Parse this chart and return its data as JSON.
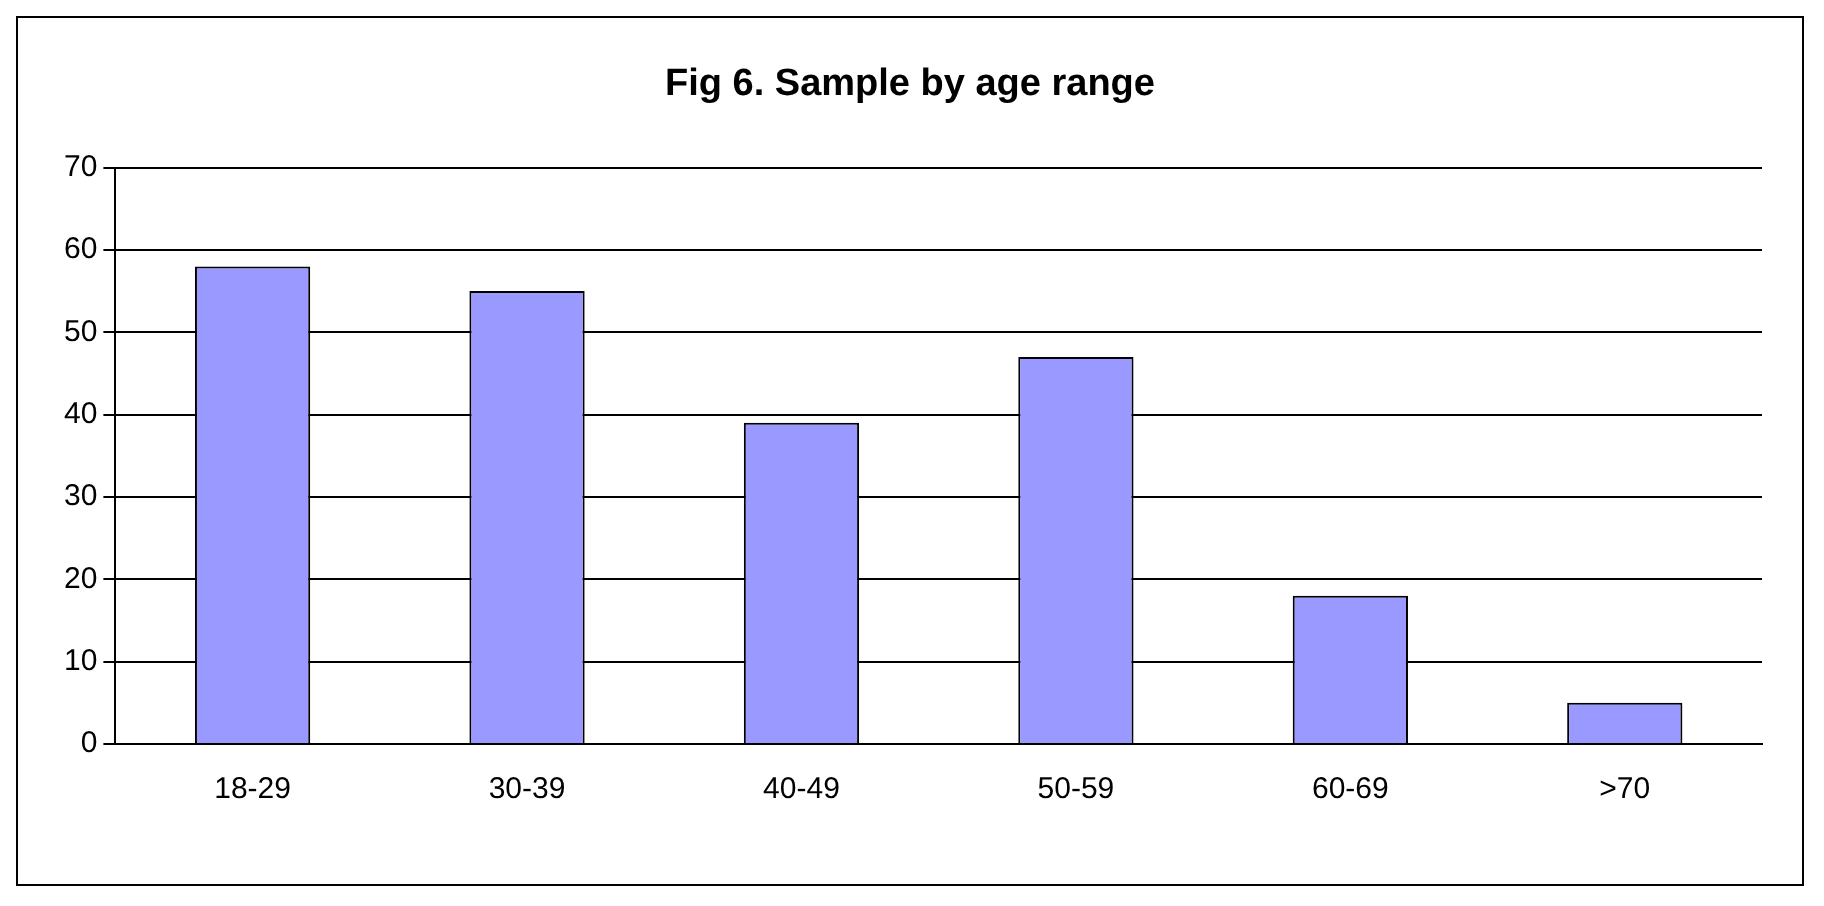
{
  "chart_data": {
    "type": "bar",
    "title": "Fig 6. Sample by age range",
    "categories": [
      "18-29",
      "30-39",
      "40-49",
      "50-59",
      "60-69",
      ">70"
    ],
    "values": [
      58,
      55,
      39,
      47,
      18,
      5
    ],
    "color": "#9999ff",
    "ylim": [
      0,
      70
    ],
    "yticks": [
      0,
      10,
      20,
      30,
      40,
      50,
      60,
      70
    ],
    "grid": "y",
    "legend": false
  }
}
